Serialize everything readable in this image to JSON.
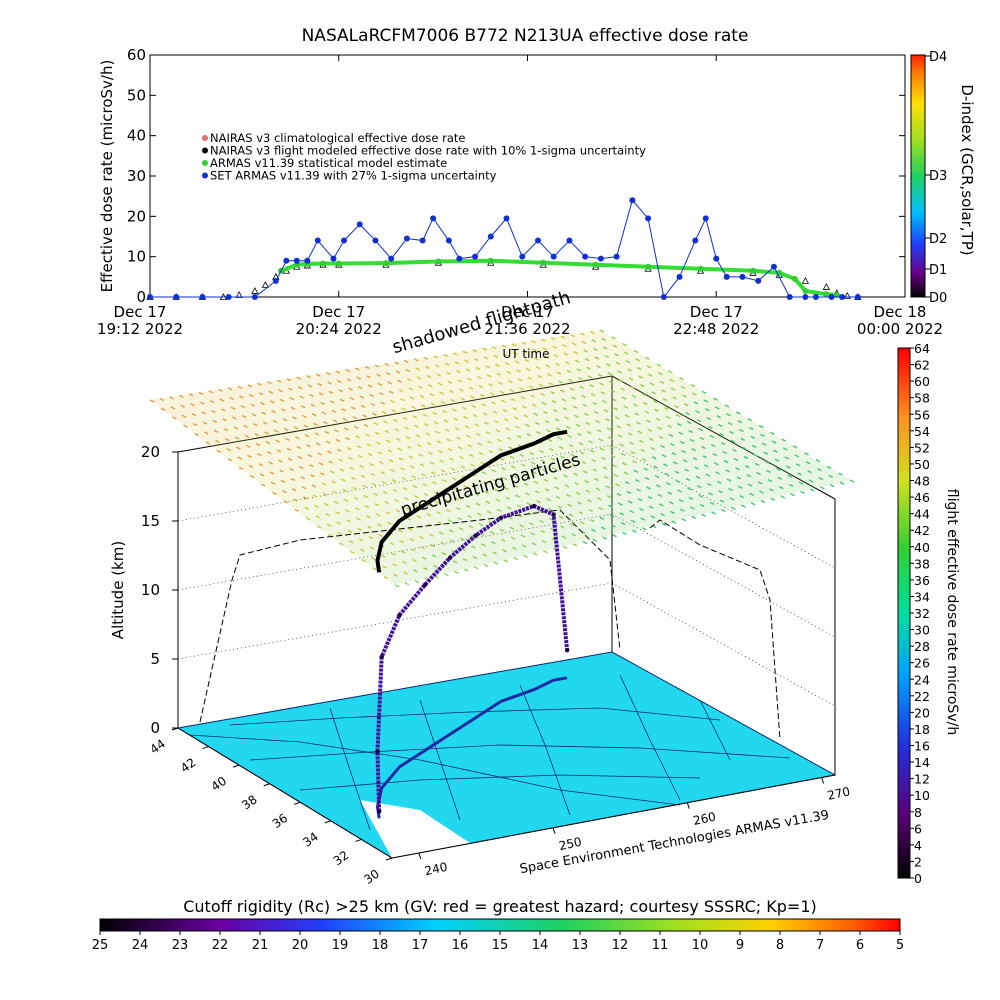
{
  "chart_data": [
    {
      "type": "scatter",
      "title": "NASALaRCFM7006  B772 N213UA effective dose rate",
      "ylabel": "Effective dose rate (microSv/h)",
      "xlabel": "UT time",
      "ylim": [
        0,
        60
      ],
      "yticks": [
        "0",
        "10",
        "20",
        "30",
        "40",
        "50",
        "60"
      ],
      "xlim_minutes": [
        0,
        288
      ],
      "xticks": [
        {
          "date": "Dec 17",
          "time": "19:12 2022"
        },
        {
          "date": "Dec 17",
          "time": "20:24 2022"
        },
        {
          "date": "Dec 17",
          "time": "21:36 2022"
        },
        {
          "date": "Dec 17",
          "time": "22:48 2022"
        },
        {
          "date": "Dec 18",
          "time": "00:00 2022"
        }
      ],
      "legend": [
        {
          "label": "NAIRAS v3 climatological effective dose rate",
          "color": "#e07070"
        },
        {
          "label": "NAIRAS v3 flight modeled effective dose rate with 10% 1-sigma uncertainty",
          "color": "#000000"
        },
        {
          "label": "ARMAS v11.39 statistical model estimate",
          "color": "#33cc33"
        },
        {
          "label": "SET ARMAS v11.39 with 27% 1-sigma uncertainty",
          "color": "#1030d0"
        }
      ],
      "series": [
        {
          "name": "NAIRAS v3 flight modeled effective dose rate with 10% 1-sigma uncertainty",
          "x": [
            0,
            10,
            20,
            28,
            34,
            40,
            44,
            48,
            52,
            56,
            60,
            66,
            72,
            90,
            110,
            130,
            150,
            170,
            190,
            210,
            230,
            240,
            250,
            258,
            262,
            266,
            270
          ],
          "y": [
            0,
            0,
            0,
            0,
            0.5,
            1.5,
            3,
            5,
            6.5,
            7.5,
            7.8,
            8,
            8,
            8,
            8.5,
            8.5,
            8,
            7.5,
            7,
            6.5,
            6,
            5.5,
            4,
            2.5,
            1,
            0.3,
            0
          ]
        },
        {
          "name": "ARMAS v11.39 statistical model estimate",
          "x": [
            50,
            56,
            60,
            66,
            72,
            90,
            110,
            130,
            150,
            170,
            190,
            210,
            230,
            240,
            246,
            250,
            258,
            262
          ],
          "y": [
            6.5,
            8,
            8.2,
            8.3,
            8.3,
            8.4,
            8.8,
            9,
            8.5,
            8,
            7.5,
            7,
            6.5,
            6,
            4.5,
            1.5,
            0.7,
            0.5
          ]
        },
        {
          "name": "SET ARMAS v11.39 with 27% 1-sigma uncertainty",
          "x": [
            0,
            10,
            20,
            30,
            40,
            48,
            52,
            56,
            60,
            64,
            70,
            74,
            80,
            86,
            92,
            98,
            104,
            108,
            114,
            118,
            124,
            130,
            136,
            142,
            148,
            154,
            160,
            166,
            172,
            178,
            184,
            190,
            196,
            202,
            208,
            212,
            216,
            220,
            226,
            232,
            238,
            244,
            250,
            254,
            260,
            264,
            270
          ],
          "y": [
            0,
            0,
            0,
            0,
            0,
            4,
            9,
            9,
            9,
            14,
            9.5,
            14,
            18,
            14,
            9.5,
            14.5,
            14,
            19.5,
            14,
            9.5,
            10,
            15,
            19.5,
            10,
            14,
            10,
            14,
            10,
            9.5,
            10,
            24,
            19.5,
            0,
            5,
            14,
            19.5,
            9.5,
            5,
            5,
            4,
            7.5,
            0,
            0,
            0,
            0,
            0,
            0
          ]
        }
      ],
      "right_axis": {
        "label": "D-index (GCR,solar,TP)",
        "ticks": [
          "D0",
          "D1",
          "D2",
          "D3",
          "D4"
        ]
      }
    },
    {
      "type": "scatter",
      "title": "",
      "zlabel": "Altitude (km)",
      "zticks": [
        "0",
        "5",
        "10",
        "15",
        "20"
      ],
      "lat_ticks": [
        "44",
        "42",
        "40",
        "38",
        "36",
        "34",
        "32",
        "30"
      ],
      "lon_ticks": [
        "240",
        "250",
        "260",
        "270"
      ],
      "annotations": [
        "shadowed flightpath",
        "precipitating particles",
        "UT time",
        "Space Environment Technologies ARMAS v11.39"
      ],
      "flight_path": {
        "lon": [
          243,
          244,
          246,
          249,
          252,
          255,
          258,
          261,
          264,
          266,
          267
        ],
        "lat": [
          33.5,
          34.5,
          36,
          37.5,
          38.5,
          39.5,
          40.5,
          41.5,
          42,
          42.5,
          42.5
        ],
        "alt_km": [
          0.5,
          4,
          9.5,
          11,
          12,
          12.8,
          13.2,
          13.3,
          13.3,
          12,
          2
        ]
      },
      "dose_colorbar": {
        "label": "flight effective dose rate microSv/h",
        "ticks": [
          "0",
          "2",
          "4",
          "6",
          "8",
          "10",
          "12",
          "14",
          "16",
          "18",
          "20",
          "22",
          "24",
          "26",
          "28",
          "30",
          "32",
          "34",
          "36",
          "38",
          "40",
          "42",
          "44",
          "46",
          "48",
          "50",
          "52",
          "54",
          "56",
          "58",
          "60",
          "62",
          "64"
        ]
      }
    },
    {
      "type": "heatmap",
      "title": "Cutoff rigidity (Rc) >25 km (GV: red = greatest hazard; courtesy SSSRC; Kp=1)",
      "ticks": [
        "25",
        "24",
        "23",
        "22",
        "21",
        "20",
        "19",
        "18",
        "17",
        "16",
        "15",
        "14",
        "13",
        "12",
        "11",
        "10",
        "9",
        "8",
        "7",
        "6",
        "5"
      ]
    }
  ]
}
